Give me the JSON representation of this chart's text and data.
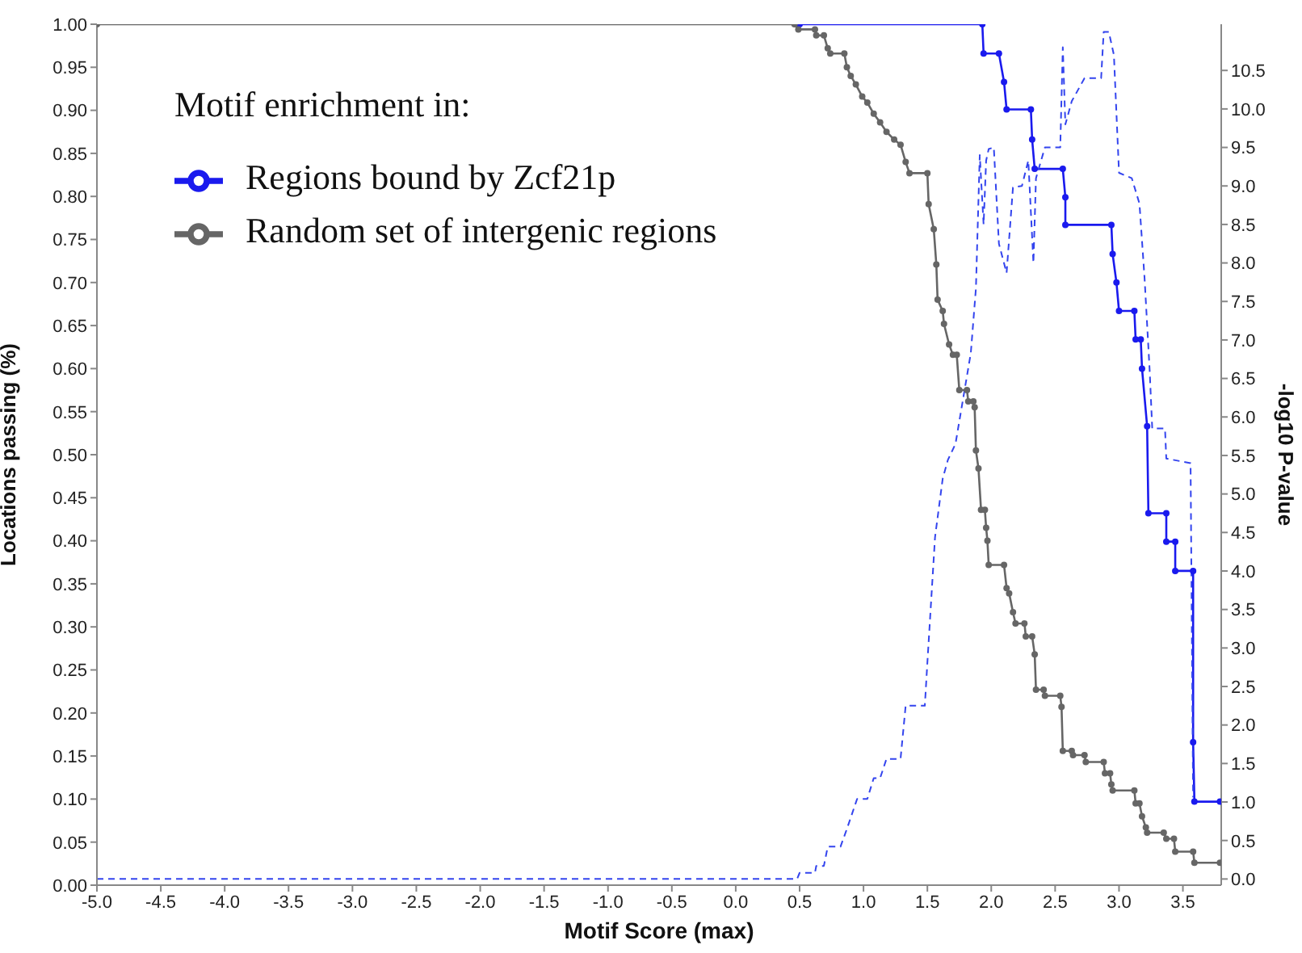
{
  "chart_data": {
    "type": "line",
    "xlabel": "Motif Score (max)",
    "ylabel": "Locations passing (%)",
    "y2label": "-log10 P-value",
    "legend_title": "Motif enrichment in:",
    "legend": "top left",
    "grid": false,
    "marker": "circle",
    "line_style": "solid",
    "xlim": [
      -5,
      3.8
    ],
    "xticks": [
      {
        "value": -5,
        "label": "-5.0"
      },
      {
        "value": -4.5,
        "label": "-4.5"
      },
      {
        "value": -4,
        "label": "-4.0"
      },
      {
        "value": -3.5,
        "label": "-3.5"
      },
      {
        "value": -3,
        "label": "-3.0"
      },
      {
        "value": -2.5,
        "label": "-2.5"
      },
      {
        "value": -2,
        "label": "-2.0"
      },
      {
        "value": -1.5,
        "label": "-1.5"
      },
      {
        "value": -1,
        "label": "-1.0"
      },
      {
        "value": -0.5,
        "label": "-0.5"
      },
      {
        "value": 0,
        "label": "0.0"
      },
      {
        "value": 0.5,
        "label": "0.5"
      },
      {
        "value": 1,
        "label": "1.0"
      },
      {
        "value": 1.5,
        "label": "1.5"
      },
      {
        "value": 2,
        "label": "2.0"
      },
      {
        "value": 2.5,
        "label": "2.5"
      },
      {
        "value": 3,
        "label": "3.0"
      },
      {
        "value": 3.5,
        "label": "3.5"
      }
    ],
    "ylim": [
      0,
      1
    ],
    "yticks": [
      {
        "value": 0,
        "label": "0.00"
      },
      0.05,
      {
        "value": 0.1,
        "label": "0.10"
      },
      0.15,
      {
        "value": 0.2,
        "label": "0.20"
      },
      0.25,
      {
        "value": 0.3,
        "label": "0.30"
      },
      0.35,
      {
        "value": 0.4,
        "label": "0.40"
      },
      0.45,
      {
        "value": 0.5,
        "label": "0.50"
      },
      0.55,
      {
        "value": 0.6,
        "label": "0.60"
      },
      0.65,
      {
        "value": 0.7,
        "label": "0.70"
      },
      0.75,
      {
        "value": 0.8,
        "label": "0.80"
      },
      0.85,
      {
        "value": 0.9,
        "label": "0.90"
      },
      0.95,
      {
        "value": 1,
        "label": "1.00"
      }
    ],
    "y2lim": [
      -0.08,
      11.1
    ],
    "y2ticks": [
      {
        "value": 0,
        "label": "0.0"
      },
      0.5,
      {
        "value": 1,
        "label": "1.0"
      },
      1.5,
      {
        "value": 2,
        "label": "2.0"
      },
      2.5,
      {
        "value": 3,
        "label": "3.0"
      },
      3.5,
      {
        "value": 4,
        "label": "4.0"
      },
      4.5,
      {
        "value": 5,
        "label": "5.0"
      },
      5.5,
      {
        "value": 6,
        "label": "6.0"
      },
      6.5,
      {
        "value": 7,
        "label": "7.0"
      },
      7.5,
      {
        "value": 8,
        "label": "8.0"
      },
      8.5,
      {
        "value": 9,
        "label": "9.0"
      },
      9.5,
      {
        "value": 10,
        "label": "10.0"
      },
      10.5
    ],
    "series": [
      {
        "name": "Regions bound by Zcf21p",
        "color": "#1a1aee",
        "x": [
          0.5,
          1.93,
          1.94,
          2.06,
          2.1,
          2.12,
          2.31,
          2.32,
          2.34,
          2.56,
          2.58,
          2.58,
          2.94,
          2.95,
          2.98,
          3.0,
          3.12,
          3.13,
          3.17,
          3.18,
          3.22,
          3.23,
          3.37,
          3.37,
          3.44,
          3.44,
          3.58,
          3.58,
          3.59,
          3.79
        ],
        "values": [
          1,
          1,
          0.966,
          0.966,
          0.933,
          0.901,
          0.901,
          0.866,
          0.832,
          0.832,
          0.799,
          0.767,
          0.767,
          0.733,
          0.7,
          0.667,
          0.667,
          0.634,
          0.634,
          0.6,
          0.533,
          0.432,
          0.432,
          0.399,
          0.399,
          0.365,
          0.365,
          0.166,
          0.097,
          0.097
        ]
      },
      {
        "name": "Random set of intergenic regions",
        "color": "#666666",
        "x": [
          -5,
          0.46,
          0.49,
          0.62,
          0.63,
          0.69,
          0.72,
          0.74,
          0.85,
          0.87,
          0.9,
          0.94,
          0.99,
          1.03,
          1.08,
          1.13,
          1.18,
          1.24,
          1.29,
          1.33,
          1.36,
          1.5,
          1.51,
          1.55,
          1.57,
          1.58,
          1.62,
          1.63,
          1.67,
          1.7,
          1.73,
          1.75,
          1.81,
          1.82,
          1.86,
          1.87,
          1.88,
          1.9,
          1.92,
          1.95,
          1.96,
          1.97,
          1.98,
          2.1,
          2.12,
          2.14,
          2.17,
          2.19,
          2.26,
          2.27,
          2.32,
          2.34,
          2.35,
          2.41,
          2.42,
          2.54,
          2.55,
          2.56,
          2.63,
          2.64,
          2.73,
          2.74,
          2.88,
          2.89,
          2.93,
          2.94,
          2.95,
          3.12,
          3.13,
          3.16,
          3.18,
          3.21,
          3.22,
          3.35,
          3.37,
          3.43,
          3.44,
          3.58,
          3.59,
          3.79
        ],
        "values": [
          1,
          1,
          0.994,
          0.994,
          0.987,
          0.987,
          0.972,
          0.966,
          0.966,
          0.95,
          0.94,
          0.93,
          0.916,
          0.909,
          0.896,
          0.886,
          0.875,
          0.866,
          0.86,
          0.84,
          0.827,
          0.827,
          0.791,
          0.762,
          0.721,
          0.68,
          0.667,
          0.652,
          0.628,
          0.616,
          0.616,
          0.575,
          0.575,
          0.562,
          0.562,
          0.555,
          0.505,
          0.484,
          0.436,
          0.436,
          0.415,
          0.4,
          0.372,
          0.372,
          0.345,
          0.339,
          0.317,
          0.304,
          0.304,
          0.289,
          0.289,
          0.268,
          0.227,
          0.227,
          0.22,
          0.22,
          0.207,
          0.156,
          0.156,
          0.151,
          0.151,
          0.143,
          0.143,
          0.13,
          0.13,
          0.117,
          0.11,
          0.11,
          0.095,
          0.095,
          0.08,
          0.067,
          0.061,
          0.061,
          0.054,
          0.054,
          0.039,
          0.039,
          0.026,
          0.026
        ]
      },
      {
        "color": "#3344ee",
        "axis": "y2",
        "marker": "none",
        "line_style": "dashed",
        "x": [
          -5,
          0.48,
          0.5,
          0.62,
          0.63,
          0.69,
          0.72,
          0.82,
          0.87,
          0.95,
          1.03,
          1.08,
          1.13,
          1.18,
          1.29,
          1.33,
          1.48,
          1.5,
          1.56,
          1.62,
          1.66,
          1.72,
          1.84,
          1.88,
          1.91,
          1.94,
          1.96,
          1.98,
          2.02,
          2.06,
          2.12,
          2.17,
          2.24,
          2.29,
          2.33,
          2.35,
          2.42,
          2.54,
          2.56,
          2.58,
          2.63,
          2.73,
          2.86,
          2.88,
          2.92,
          2.96,
          3.0,
          3.1,
          3.16,
          3.2,
          3.24,
          3.26,
          3.36,
          3.37,
          3.56,
          3.58
        ],
        "values": [
          0,
          0,
          0.08,
          0.08,
          0.17,
          0.17,
          0.42,
          0.42,
          0.65,
          1.04,
          1.04,
          1.31,
          1.31,
          1.56,
          1.56,
          2.25,
          2.25,
          2.81,
          4.44,
          5.2,
          5.44,
          5.65,
          6.83,
          7.67,
          9.4,
          8.5,
          9.33,
          9.48,
          9.5,
          8.25,
          7.87,
          8.98,
          9.0,
          9.33,
          8.0,
          9.1,
          9.5,
          9.5,
          10.8,
          9.8,
          10.1,
          10.4,
          10.4,
          11.0,
          11.0,
          10.7,
          9.17,
          9.1,
          8.77,
          7.8,
          6.6,
          5.85,
          5.85,
          5.46,
          5.4,
          1.06
        ]
      }
    ]
  }
}
